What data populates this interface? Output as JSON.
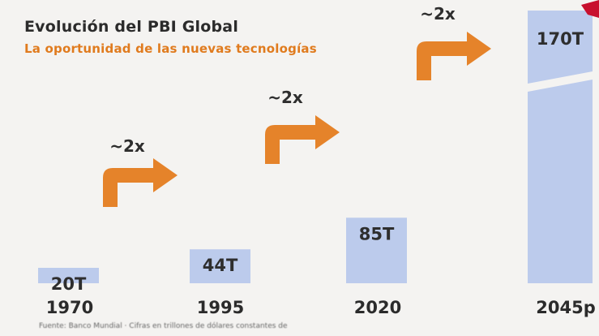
{
  "header": {
    "title": "Evolución del PBI Global",
    "subtitle": "La oportunidad de las nuevas tecnologías"
  },
  "footer": {
    "source": "Fuente: Banco Mundial · Cifras en trillones de dólares constantes de"
  },
  "colors": {
    "bar": "#bccbec",
    "arrow": "#e5832a",
    "title": "#2b2b2b",
    "subtitle": "#e07b1e",
    "corner": "#c8102e"
  },
  "icons": {
    "growth_arrow": "right-turn-arrow-icon"
  },
  "chart_data": {
    "type": "bar",
    "categories": [
      "1970",
      "1995",
      "2020",
      "2045p"
    ],
    "values": [
      20,
      44,
      85,
      170
    ],
    "value_labels": [
      "20T",
      "44T",
      "85T",
      "170T"
    ],
    "growth_labels": [
      "~2x",
      "~2x",
      "~2x",
      "~2x"
    ],
    "axis_break_on_last_bar": true,
    "title": "",
    "xlabel": "",
    "ylabel": ""
  }
}
